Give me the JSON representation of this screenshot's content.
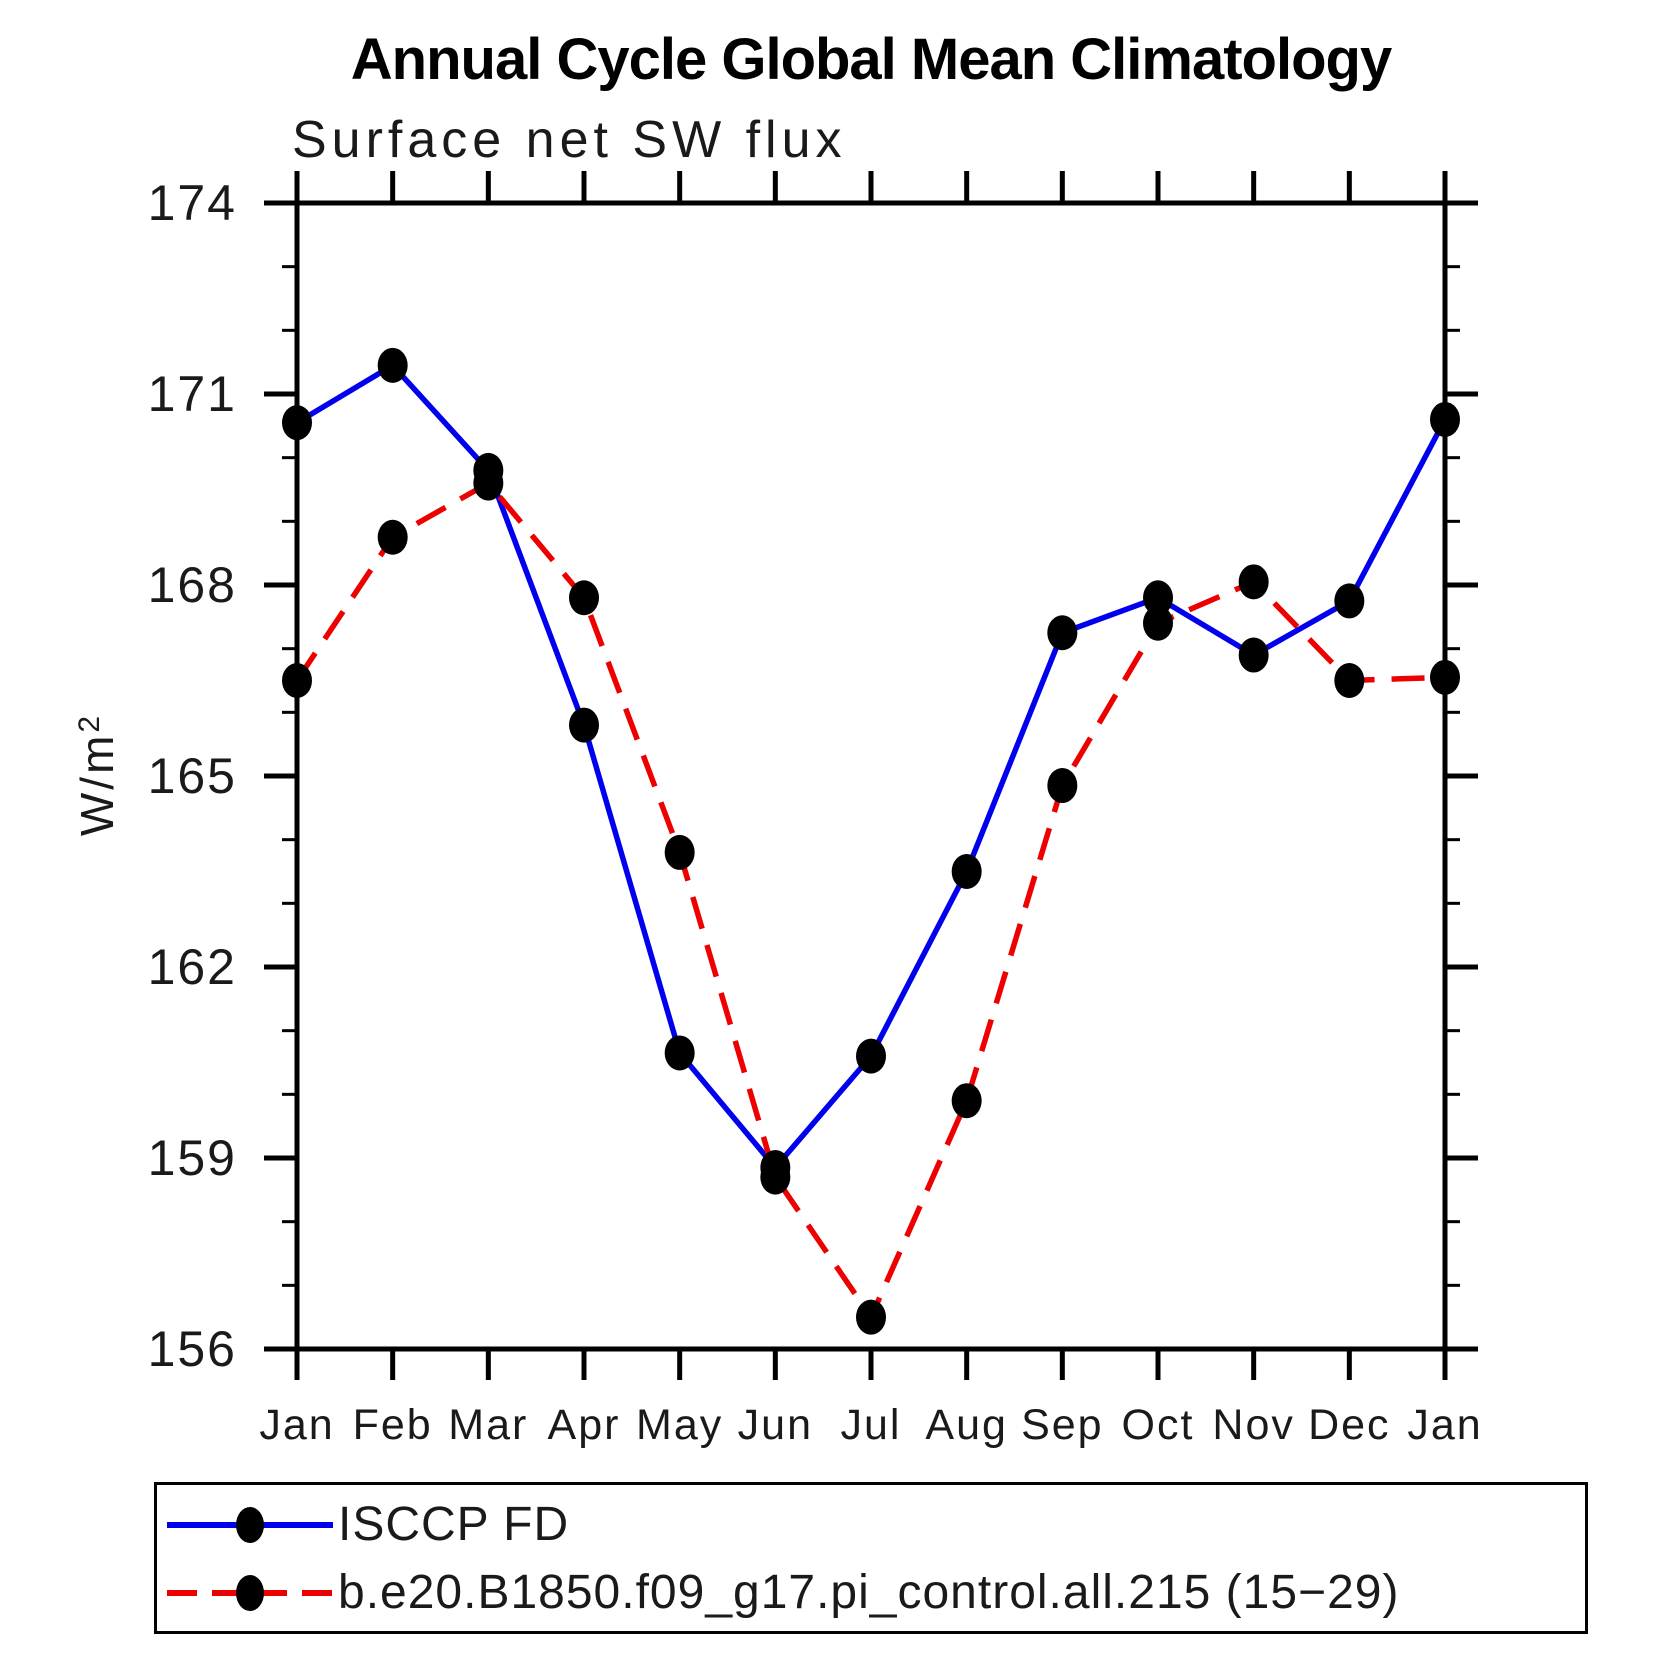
{
  "title": "Annual Cycle Global Mean Climatology",
  "subtitle": "Surface net SW flux",
  "chart_data": {
    "type": "line",
    "x_categories": [
      "Jan",
      "Feb",
      "Mar",
      "Apr",
      "May",
      "Jun",
      "Jul",
      "Aug",
      "Sep",
      "Oct",
      "Nov",
      "Dec",
      "Jan"
    ],
    "ylabel_base": "W/m",
    "ylabel_exp": "2",
    "ylim": [
      156,
      174
    ],
    "ytick_major": [
      156,
      159,
      162,
      165,
      168,
      171,
      174
    ],
    "ytick_minor_step": 1,
    "grid": false,
    "legend_position": "bottom-left-box",
    "series": [
      {
        "name": "ISCCP FD",
        "line_style": "solid",
        "color": "#0000ee",
        "marker": "circle",
        "marker_color": "#000000",
        "values": [
          170.55,
          171.45,
          169.8,
          165.8,
          160.65,
          158.85,
          160.6,
          163.5,
          167.25,
          167.8,
          166.9,
          167.75,
          170.6
        ]
      },
      {
        "name": "b.e20.B1850.f09_g17.pi_control.all.215 (15−29)",
        "line_style": "dashed",
        "color": "#ee0000",
        "marker": "circle",
        "marker_color": "#000000",
        "values": [
          166.5,
          168.75,
          169.6,
          167.8,
          163.8,
          158.7,
          156.5,
          159.9,
          164.85,
          167.4,
          168.05,
          166.5,
          166.55
        ]
      }
    ],
    "axis_color": "#000000",
    "text_color": "#1a1a1a"
  }
}
